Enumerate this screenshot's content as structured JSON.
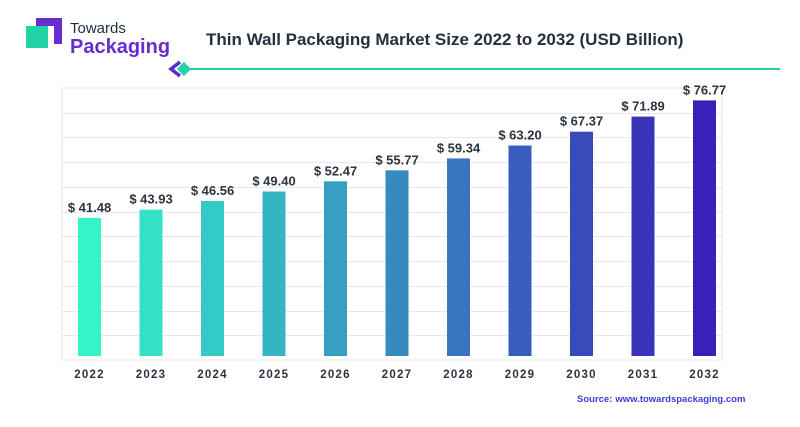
{
  "header": {
    "logo_top": "Towards",
    "logo_bottom": "Packaging",
    "title": "Thin Wall Packaging Market Size 2022 to 2032 (USD Billion)"
  },
  "footer": {
    "source_label": "Source:",
    "source_url": "www.towardspackaging.com"
  },
  "colors": {
    "bar_start": "#33f5c8",
    "bar_end": "#3a1fb8",
    "title": "#26303c",
    "logo_accent": "#6a2bd1",
    "logo_teal": "#22d3a8",
    "source": "#3a3fd6"
  },
  "chart_data": {
    "type": "bar",
    "title": "Thin Wall Packaging Market Size 2022 to 2032 (USD Billion)",
    "categories": [
      "2022",
      "2023",
      "2024",
      "2025",
      "2026",
      "2027",
      "2028",
      "2029",
      "2030",
      "2031",
      "2032"
    ],
    "values": [
      41.48,
      43.93,
      46.56,
      49.4,
      52.47,
      55.77,
      59.34,
      63.2,
      67.37,
      71.89,
      76.77
    ],
    "data_labels": [
      "$ 41.48",
      "$ 43.93",
      "$ 46.56",
      "$ 49.40",
      "$ 52.47",
      "$ 55.77",
      "$ 59.34",
      "$ 63.20",
      "$ 67.37",
      "$ 71.89",
      "$ 76.77"
    ],
    "xlabel": "",
    "ylabel": "",
    "grid": true,
    "legend": "none"
  }
}
